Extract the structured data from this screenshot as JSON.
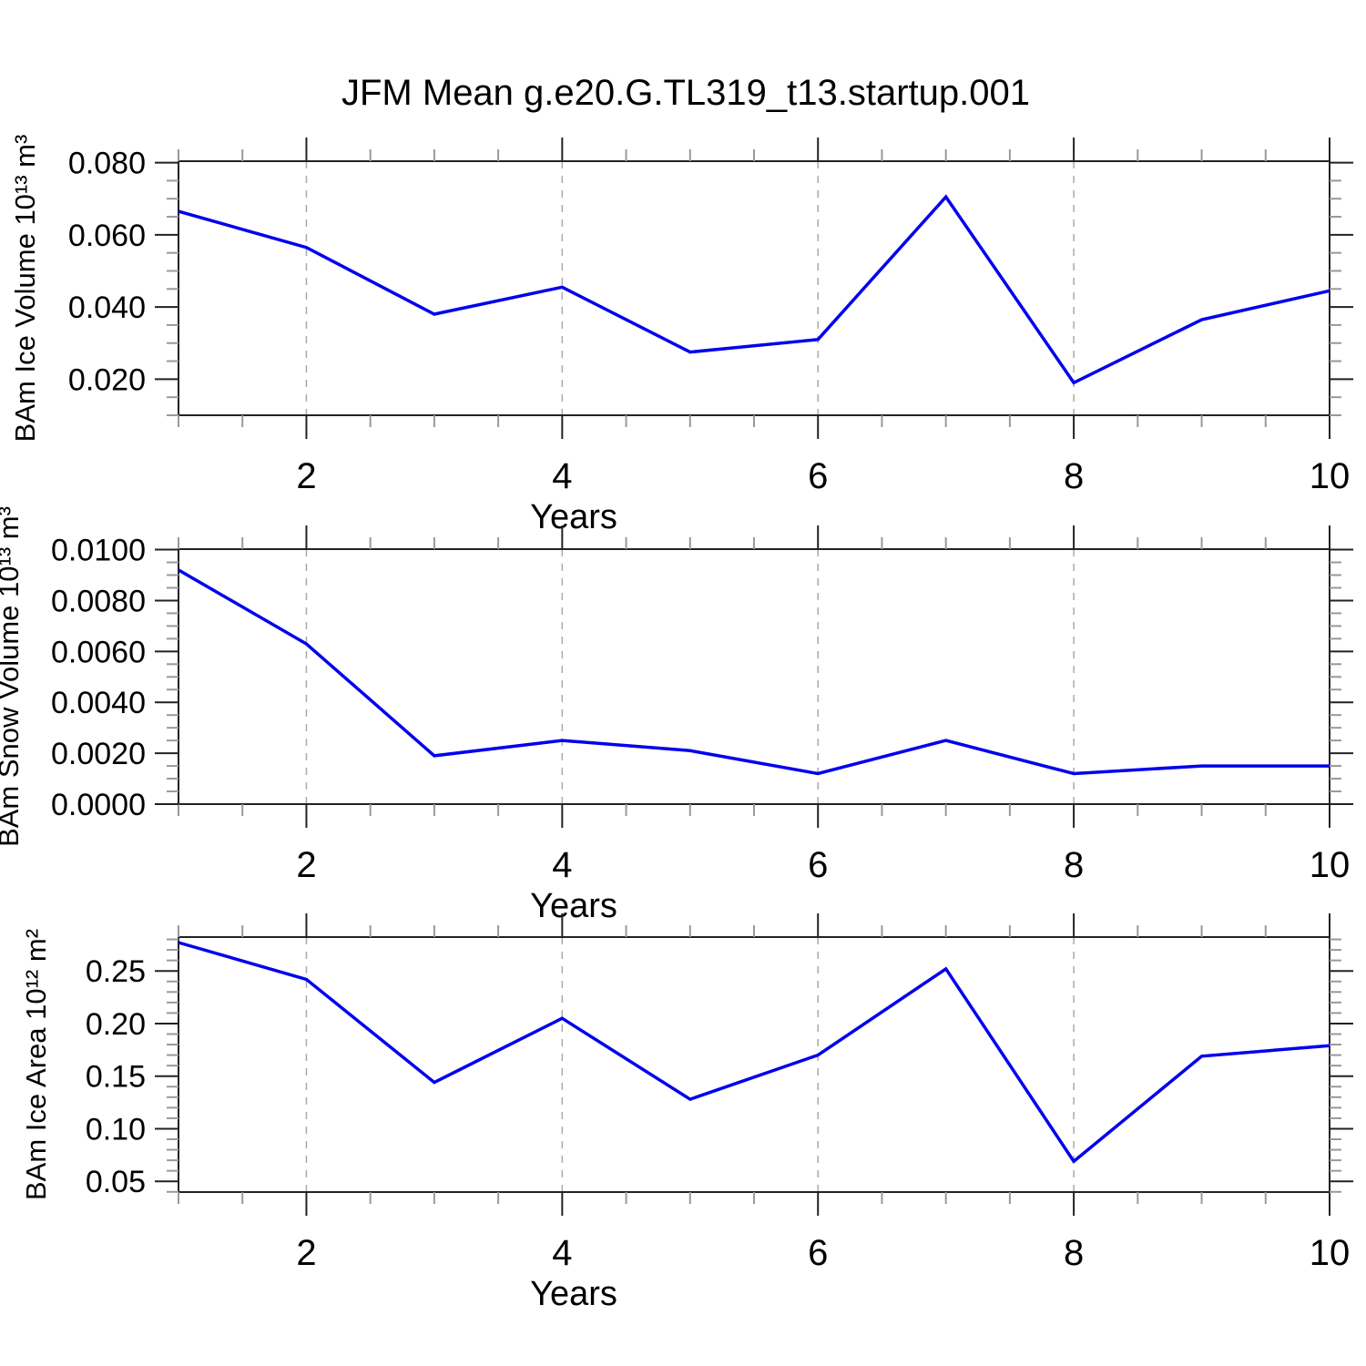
{
  "title": "JFM Mean g.e20.G.TL319_t13.startup.001",
  "colors": {
    "background": "#ffffff",
    "line": "#0000ee",
    "frame": "#222222",
    "major_tick": "#222222",
    "minor_tick": "#999999",
    "grid": "#aaaaaa",
    "text": "#000000"
  },
  "chart_data": [
    {
      "type": "line",
      "id": "ice-volume",
      "ylabel": "BAm Ice Volume 10¹³ m³",
      "xlabel": "Years",
      "x": [
        1,
        2,
        3,
        4,
        5,
        6,
        7,
        8,
        9,
        10
      ],
      "values": [
        0.0665,
        0.0565,
        0.038,
        0.0455,
        0.0275,
        0.031,
        0.0705,
        0.019,
        0.0365,
        0.0445
      ],
      "xlim": [
        1,
        10
      ],
      "ylim": [
        0.01,
        0.0804
      ],
      "ytick_values": [
        0.02,
        0.04,
        0.06,
        0.08
      ],
      "ytick_labels": [
        "0.020",
        "0.040",
        "0.060",
        "0.080"
      ],
      "y_minor_step": 0.005,
      "xtick_values": [
        2,
        4,
        6,
        8,
        10
      ],
      "xtick_labels": [
        "2",
        "4",
        "6",
        "8",
        "10"
      ],
      "x_minor_step": 0.5,
      "grid_x": [
        2,
        4,
        6,
        8
      ],
      "legend": "none",
      "grid": "dashed-vertical"
    },
    {
      "type": "line",
      "id": "snow-volume",
      "ylabel": "BAm Snow Volume 10¹³ m³",
      "xlabel": "Years",
      "x": [
        1,
        2,
        3,
        4,
        5,
        6,
        7,
        8,
        9,
        10
      ],
      "values": [
        0.0092,
        0.0063,
        0.0019,
        0.0025,
        0.0021,
        0.0012,
        0.0025,
        0.0012,
        0.0015,
        0.0015
      ],
      "xlim": [
        1,
        10
      ],
      "ylim": [
        0.0,
        0.01002
      ],
      "ytick_values": [
        0.0,
        0.002,
        0.004,
        0.006,
        0.008,
        0.01
      ],
      "ytick_labels": [
        "0.0000",
        "0.0020",
        "0.0040",
        "0.0060",
        "0.0080",
        "0.0100"
      ],
      "y_minor_step": 0.0005,
      "xtick_values": [
        2,
        4,
        6,
        8,
        10
      ],
      "xtick_labels": [
        "2",
        "4",
        "6",
        "8",
        "10"
      ],
      "x_minor_step": 0.5,
      "grid_x": [
        2,
        4,
        6,
        8
      ],
      "legend": "none",
      "grid": "dashed-vertical"
    },
    {
      "type": "line",
      "id": "ice-area",
      "ylabel": "BAm Ice Area 10¹² m²",
      "xlabel": "Years",
      "x": [
        1,
        2,
        3,
        4,
        5,
        6,
        7,
        8,
        9,
        10
      ],
      "values": [
        0.277,
        0.242,
        0.144,
        0.205,
        0.128,
        0.17,
        0.252,
        0.069,
        0.169,
        0.179
      ],
      "xlim": [
        1,
        10
      ],
      "ylim": [
        0.0398,
        0.2822
      ],
      "ytick_values": [
        0.05,
        0.1,
        0.15,
        0.2,
        0.25
      ],
      "ytick_labels": [
        "0.05",
        "0.10",
        "0.15",
        "0.20",
        "0.25"
      ],
      "y_minor_step": 0.01,
      "xtick_values": [
        2,
        4,
        6,
        8,
        10
      ],
      "xtick_labels": [
        "2",
        "4",
        "6",
        "8",
        "10"
      ],
      "x_minor_step": 0.5,
      "grid_x": [
        2,
        4,
        6,
        8
      ],
      "legend": "none",
      "grid": "dashed-vertical"
    }
  ]
}
